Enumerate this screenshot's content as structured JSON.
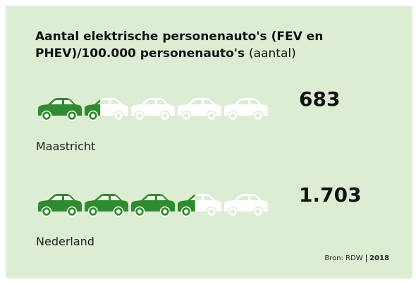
{
  "chart_data": {
    "type": "pictogram",
    "title": "Aantal elektrische personenauto's (FEV en PHEV)/100.000 personenauto's",
    "subtitle": "(aantal)",
    "categories": [
      "Maastricht",
      "Nederland"
    ],
    "values": [
      683,
      1703
    ],
    "value_labels": [
      "683",
      "1.703"
    ],
    "xlim": [
      0,
      2500
    ],
    "color": "#2e8b2e",
    "source": "Bron: RDW",
    "source_year": "2018"
  }
}
